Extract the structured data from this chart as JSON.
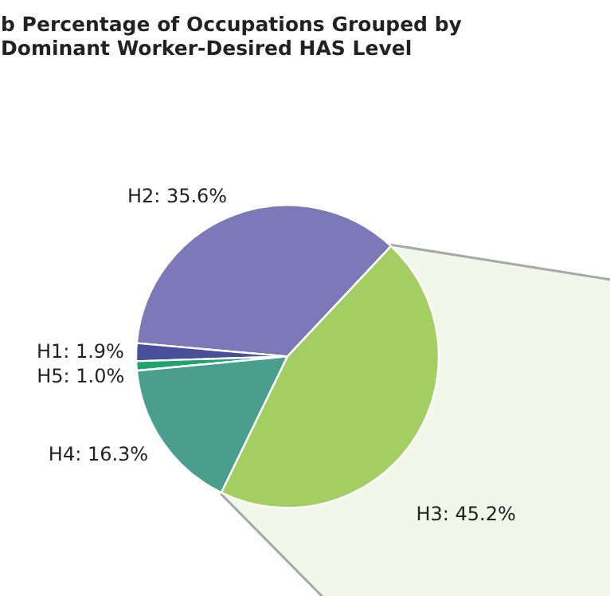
{
  "chart_data": {
    "type": "pie",
    "title": "b Percentage of Occupations Grouped by\nDominant Worker-Desired HAS Level",
    "categories": [
      "H2",
      "H1",
      "H5",
      "H4",
      "H3"
    ],
    "values": [
      35.6,
      1.9,
      1.0,
      16.3,
      45.2
    ],
    "colors": [
      "#7b79b8",
      "#4a4f9a",
      "#1fa36f",
      "#4a9e8e",
      "#a3cf62"
    ],
    "value_labels": [
      "35.6%",
      "1.9%",
      "1.0%",
      "16.3%",
      "45.2%"
    ]
  }
}
